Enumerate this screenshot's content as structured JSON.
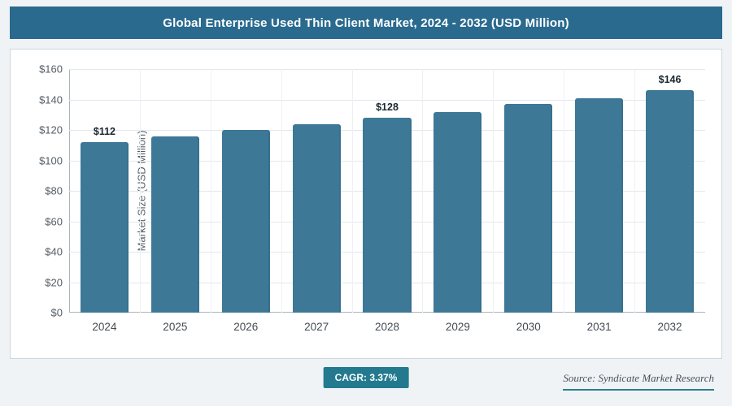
{
  "header": {
    "title": "Global Enterprise Used Thin Client Market, 2024 - 2032 (USD Million)"
  },
  "footer": {
    "cagr_label": "CAGR: 3.37%",
    "source": "Source: Syndicate Market Research"
  },
  "colors": {
    "header_bg": "#2a6a8e",
    "bar_fill": "#3d7897",
    "badge_bg": "#237a8f"
  },
  "chart_data": {
    "type": "bar",
    "title": "Global Enterprise Used Thin Client Market, 2024 - 2032 (USD Million)",
    "categories": [
      "2024",
      "2025",
      "2026",
      "2027",
      "2028",
      "2029",
      "2030",
      "2031",
      "2032"
    ],
    "values": [
      112,
      116,
      120,
      124,
      128,
      132,
      137,
      141,
      146
    ],
    "labeled_points": [
      {
        "index": 0,
        "label": "$112"
      },
      {
        "index": 4,
        "label": "$128"
      },
      {
        "index": 8,
        "label": "$146"
      }
    ],
    "xlabel": "",
    "ylabel": "Market Size (USD Million)",
    "ylim": [
      0,
      160
    ],
    "ytick_step": 20,
    "ytick_prefix": "$",
    "grid": true,
    "legend": false
  }
}
